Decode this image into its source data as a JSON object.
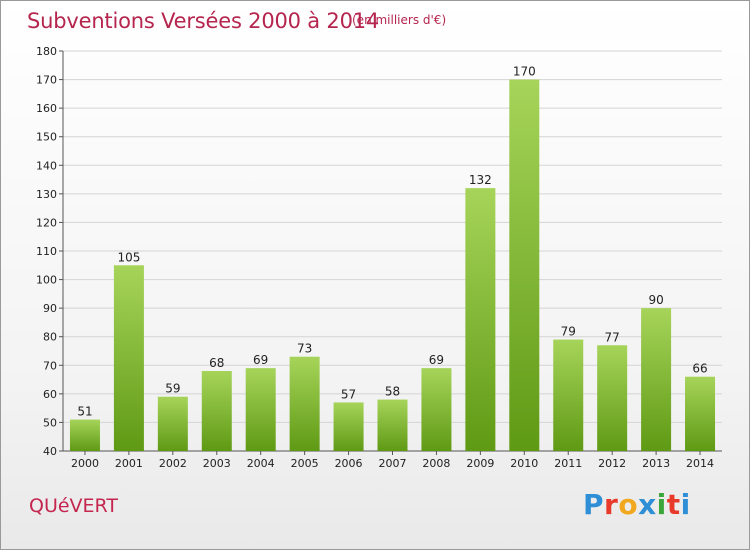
{
  "header": {
    "title": "Subventions Versées 2000 à 2014",
    "unit": "(en milliers d'€)"
  },
  "footer": {
    "commune": "QUéVERT",
    "logo_text": "Proxiti",
    "logo_colors": [
      "#2e8fd6",
      "#e8392a",
      "#f1a81e",
      "#2e8fd6",
      "#3aa63a",
      "#e8392a",
      "#2e8fd6"
    ]
  },
  "colors": {
    "bar_top": "#a6d45a",
    "bar_bottom": "#5f9a14",
    "grid": "#d4d4d4",
    "axis": "#555555",
    "title": "#b5254e"
  },
  "chart_data": {
    "type": "bar",
    "title": "Subventions Versées 2000 à 2014",
    "subtitle": "(en milliers d'€)",
    "xlabel": "",
    "ylabel": "",
    "categories": [
      "2000",
      "2001",
      "2002",
      "2003",
      "2004",
      "2005",
      "2006",
      "2007",
      "2008",
      "2009",
      "2010",
      "2011",
      "2012",
      "2013",
      "2014"
    ],
    "values": [
      51,
      105,
      59,
      68,
      69,
      73,
      57,
      58,
      69,
      132,
      170,
      79,
      77,
      90,
      66
    ],
    "ylim": [
      40,
      180
    ],
    "yticks": [
      40,
      50,
      60,
      70,
      80,
      90,
      100,
      110,
      120,
      130,
      140,
      150,
      160,
      170,
      180
    ],
    "grid": true,
    "legend": "none"
  }
}
